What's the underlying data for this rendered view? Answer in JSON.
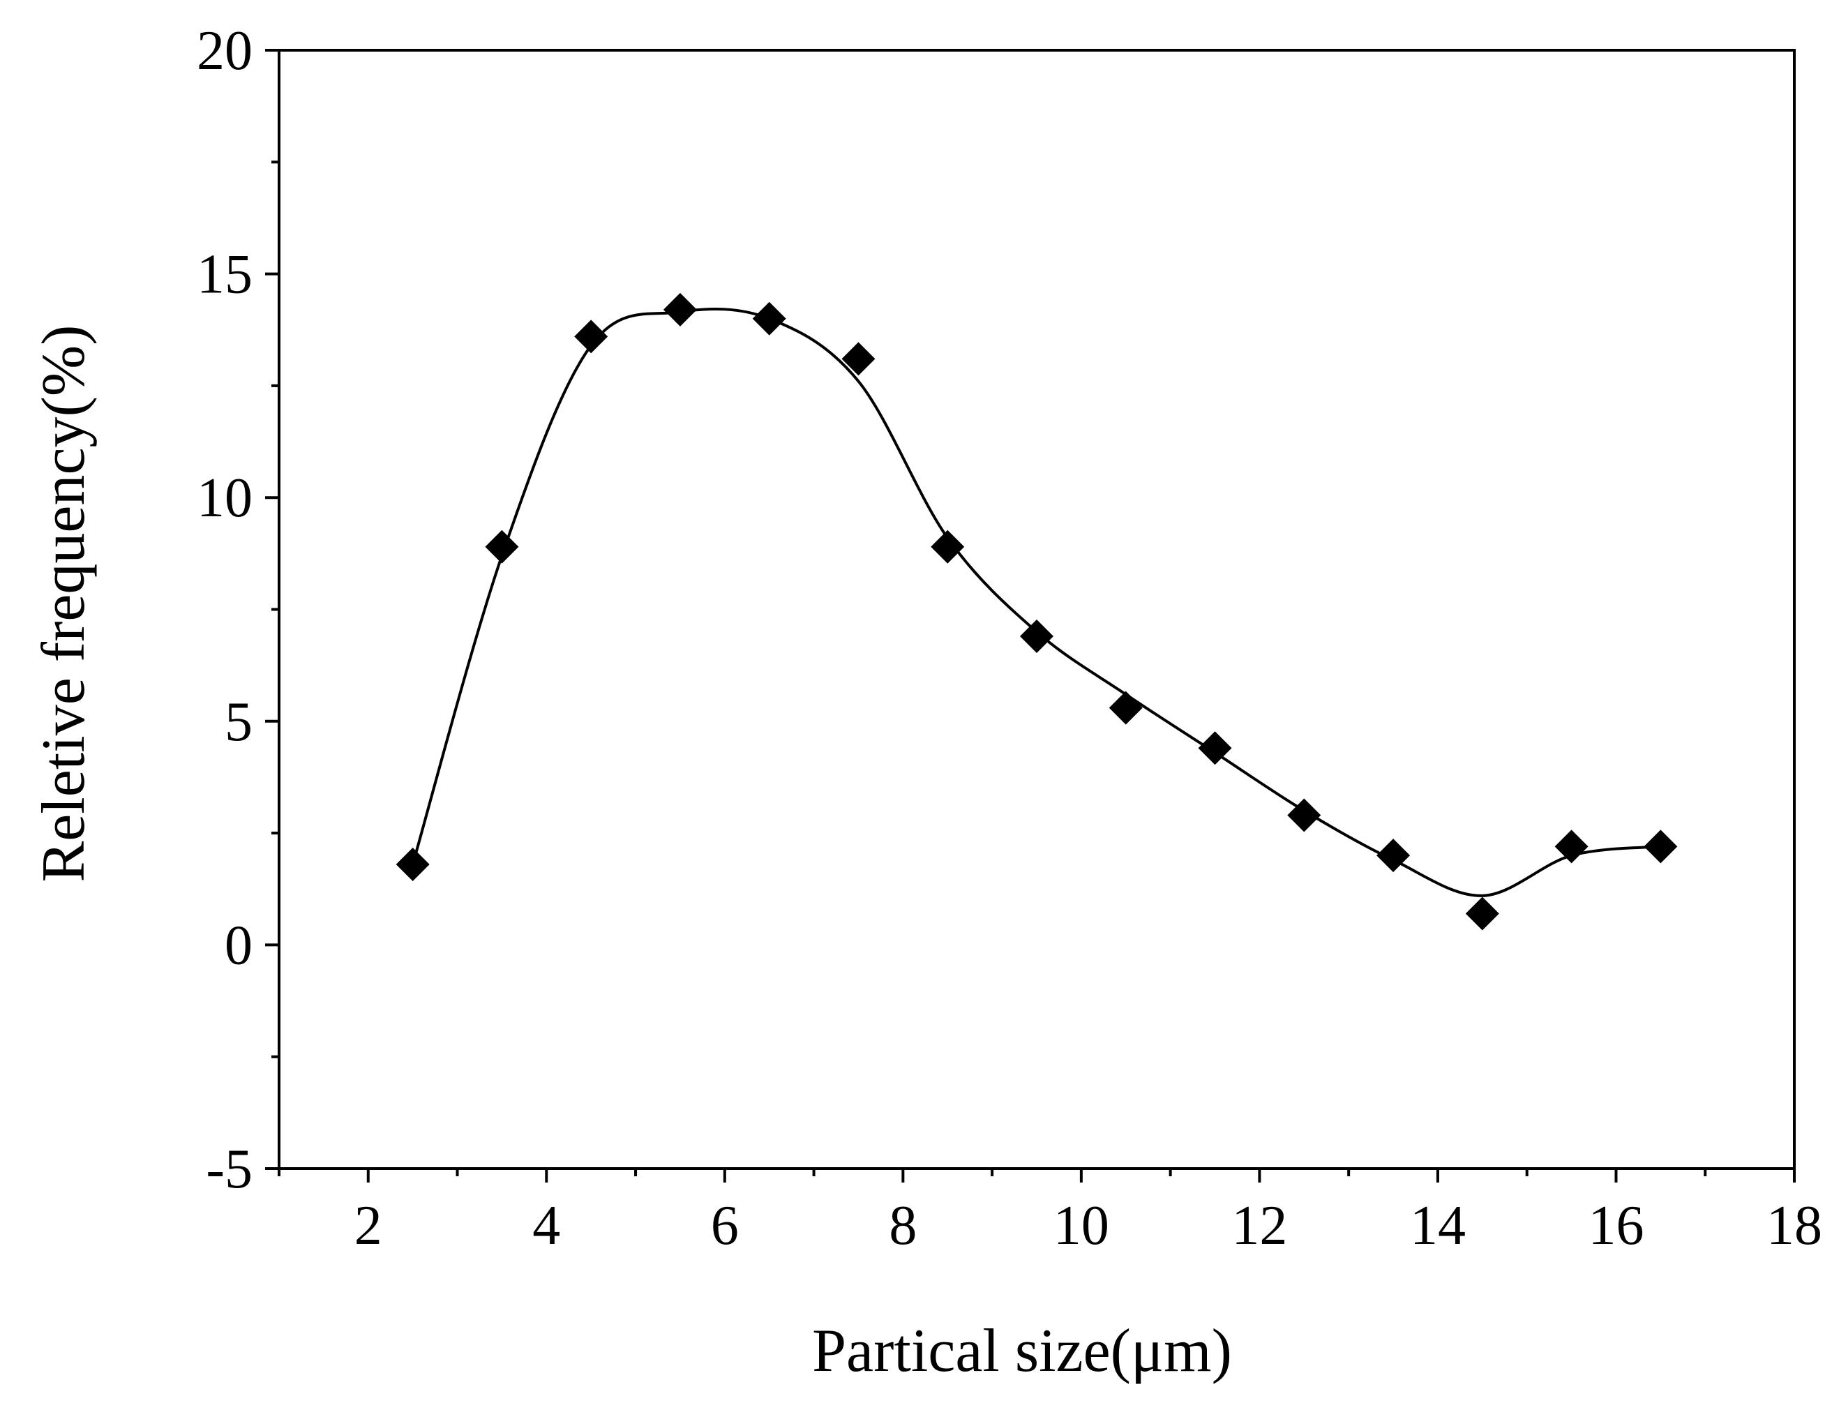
{
  "chart_data": {
    "type": "scatter",
    "title": "",
    "xlabel": "Partical size(μm)",
    "ylabel": "Reletive frequency(%)",
    "xlim": [
      1,
      18
    ],
    "ylim": [
      -5,
      20
    ],
    "x_ticks": [
      2,
      4,
      6,
      8,
      10,
      12,
      14,
      16,
      18
    ],
    "y_ticks": [
      -5,
      0,
      5,
      10,
      15,
      20
    ],
    "x_tick_labels": [
      "2",
      "4",
      "6",
      "8",
      "10",
      "12",
      "14",
      "16",
      "18"
    ],
    "y_tick_labels": [
      "-5",
      "0",
      "5",
      "10",
      "15",
      "20"
    ],
    "grid": false,
    "series": [
      {
        "name": "Relative frequency",
        "marker": "diamond",
        "line": "smooth",
        "color": "#000000",
        "x": [
          2.5,
          3.5,
          4.5,
          5.5,
          6.5,
          7.5,
          8.5,
          9.5,
          10.5,
          11.5,
          12.5,
          13.5,
          14.5,
          15.5,
          16.5
        ],
        "values": [
          1.8,
          8.9,
          13.6,
          14.2,
          14.0,
          13.1,
          8.9,
          6.9,
          5.3,
          4.4,
          2.9,
          2.0,
          0.7,
          2.2,
          2.2
        ]
      }
    ],
    "fit_curve": {
      "x": [
        2.5,
        3.5,
        4.5,
        5.5,
        6.5,
        7.5,
        8.5,
        9.5,
        10.5,
        11.5,
        12.5,
        13.5,
        14.5,
        15.5,
        16.5
      ],
      "values": [
        1.8,
        8.7,
        13.4,
        14.15,
        14.0,
        12.6,
        9.1,
        7.0,
        5.6,
        4.3,
        3.0,
        1.9,
        1.1,
        2.0,
        2.2
      ]
    }
  }
}
